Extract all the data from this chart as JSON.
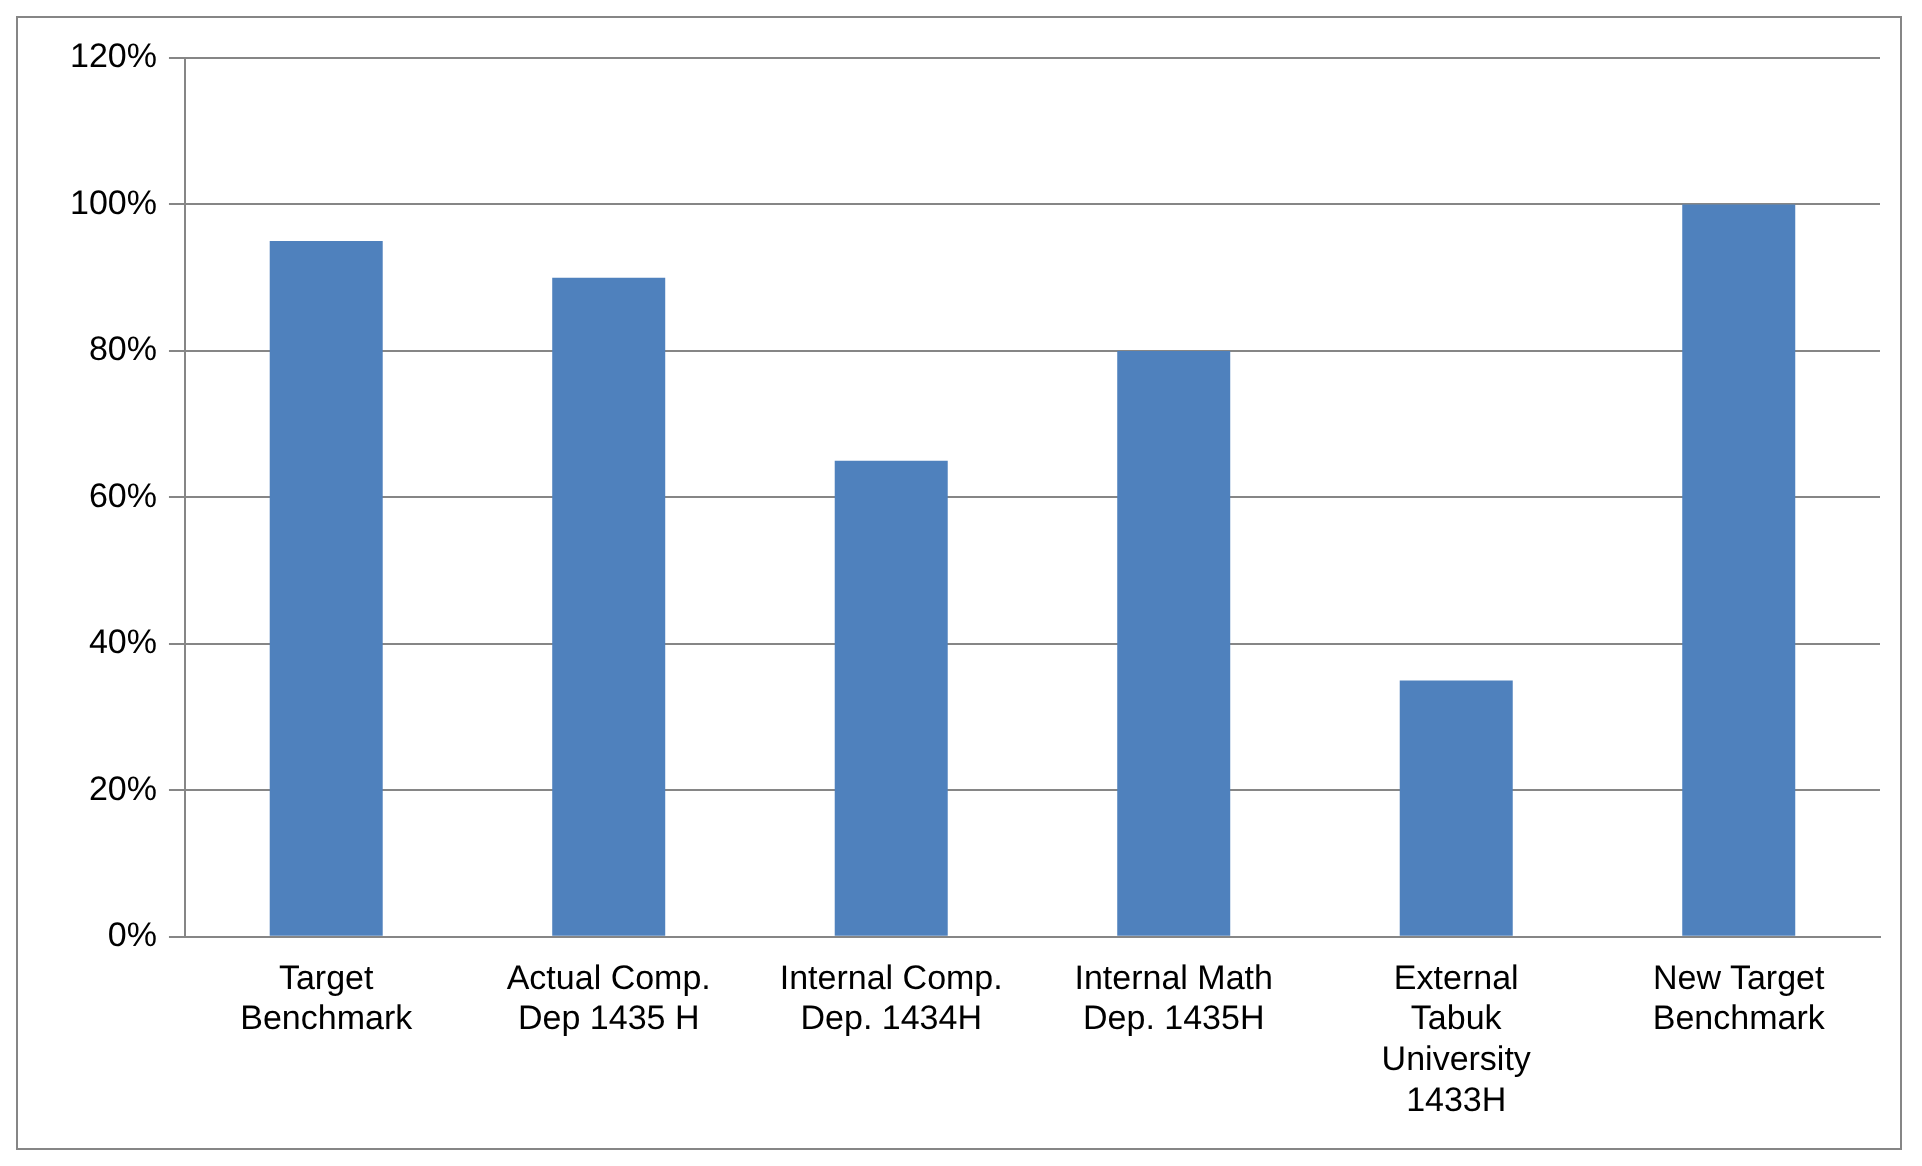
{
  "chart_data": {
    "type": "bar",
    "categories": [
      "Target Benchmark",
      "Actual Comp. Dep 1435 H",
      "Internal Comp. Dep. 1434H",
      "Internal Math Dep. 1435H",
      "External Tabuk University 1433H",
      "New Target Benchmark"
    ],
    "values": [
      95,
      90,
      65,
      80,
      35,
      100
    ],
    "color": "#4f81bd",
    "ylim": [
      0,
      120
    ],
    "yticks": [
      {
        "value": 0,
        "label": "0%"
      },
      {
        "value": 20,
        "label": "20%"
      },
      {
        "value": 40,
        "label": "40%"
      },
      {
        "value": 60,
        "label": "60%"
      },
      {
        "value": 80,
        "label": "80%"
      },
      {
        "value": 100,
        "label": "100%"
      },
      {
        "value": 120,
        "label": "120%"
      }
    ],
    "grid": "y"
  }
}
